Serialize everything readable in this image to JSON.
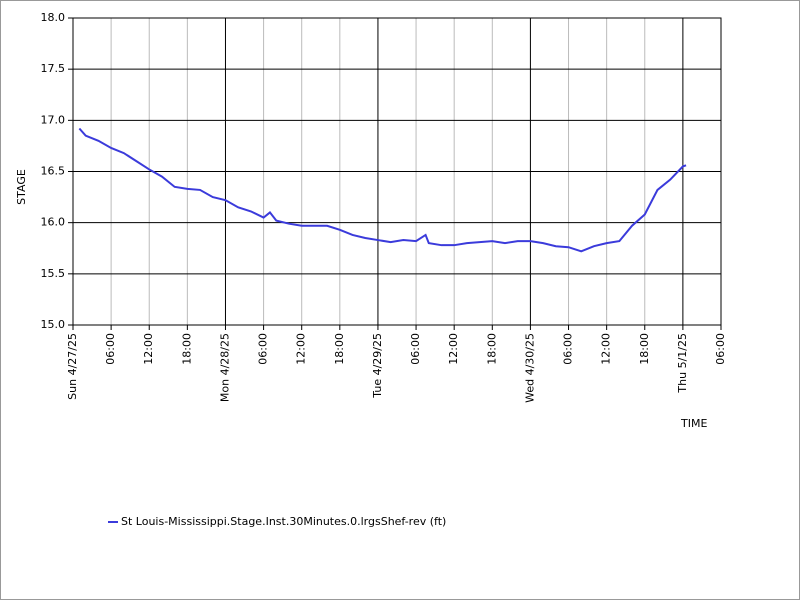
{
  "chart_data": {
    "type": "line",
    "y_label": "STAGE",
    "x_label": "TIME",
    "xlim": [
      "2025-04-27T00:00",
      "2025-05-01T06:00"
    ],
    "xticks": [
      {
        "value": "2025-04-27T00:00",
        "label": "Sun 4/27/25"
      },
      {
        "value": "2025-04-27T06:00",
        "label": "06:00"
      },
      {
        "value": "2025-04-27T12:00",
        "label": "12:00"
      },
      {
        "value": "2025-04-27T18:00",
        "label": "18:00"
      },
      {
        "value": "2025-04-28T00:00",
        "label": "Mon 4/28/25"
      },
      {
        "value": "2025-04-28T06:00",
        "label": "06:00"
      },
      {
        "value": "2025-04-28T12:00",
        "label": "12:00"
      },
      {
        "value": "2025-04-28T18:00",
        "label": "18:00"
      },
      {
        "value": "2025-04-29T00:00",
        "label": "Tue 4/29/25"
      },
      {
        "value": "2025-04-29T06:00",
        "label": "06:00"
      },
      {
        "value": "2025-04-29T12:00",
        "label": "12:00"
      },
      {
        "value": "2025-04-29T18:00",
        "label": "18:00"
      },
      {
        "value": "2025-04-30T00:00",
        "label": "Wed 4/30/25"
      },
      {
        "value": "2025-04-30T06:00",
        "label": "06:00"
      },
      {
        "value": "2025-04-30T12:00",
        "label": "12:00"
      },
      {
        "value": "2025-04-30T18:00",
        "label": "18:00"
      },
      {
        "value": "2025-05-01T00:00",
        "label": "Thu 5/1/25"
      },
      {
        "value": "2025-05-01T06:00",
        "label": "06:00"
      }
    ],
    "ylim": [
      15.0,
      18.0
    ],
    "yticks": [
      {
        "value": 15.0,
        "label": "15.0"
      },
      {
        "value": 15.5,
        "label": "15.5"
      },
      {
        "value": 16.0,
        "label": "16.0"
      },
      {
        "value": 16.5,
        "label": "16.5"
      },
      {
        "value": 17.0,
        "label": "17.0"
      },
      {
        "value": 17.5,
        "label": "17.5"
      },
      {
        "value": 18.0,
        "label": "18.0"
      }
    ],
    "grid": true,
    "x": [
      "2025-04-27T01:00",
      "2025-04-27T02:00",
      "2025-04-27T04:00",
      "2025-04-27T06:00",
      "2025-04-27T08:00",
      "2025-04-27T10:00",
      "2025-04-27T12:00",
      "2025-04-27T14:00",
      "2025-04-27T16:00",
      "2025-04-27T18:00",
      "2025-04-27T20:00",
      "2025-04-27T22:00",
      "2025-04-28T00:00",
      "2025-04-28T02:00",
      "2025-04-28T04:00",
      "2025-04-28T06:00",
      "2025-04-28T07:00",
      "2025-04-28T08:00",
      "2025-04-28T10:00",
      "2025-04-28T12:00",
      "2025-04-28T14:00",
      "2025-04-28T16:00",
      "2025-04-28T18:00",
      "2025-04-28T20:00",
      "2025-04-28T22:00",
      "2025-04-29T00:00",
      "2025-04-29T02:00",
      "2025-04-29T04:00",
      "2025-04-29T06:00",
      "2025-04-29T07:30",
      "2025-04-29T08:00",
      "2025-04-29T10:00",
      "2025-04-29T12:00",
      "2025-04-29T14:00",
      "2025-04-29T16:00",
      "2025-04-29T18:00",
      "2025-04-29T20:00",
      "2025-04-29T22:00",
      "2025-04-30T00:00",
      "2025-04-30T02:00",
      "2025-04-30T04:00",
      "2025-04-30T06:00",
      "2025-04-30T08:00",
      "2025-04-30T10:00",
      "2025-04-30T12:00",
      "2025-04-30T14:00",
      "2025-04-30T16:00",
      "2025-04-30T18:00",
      "2025-04-30T20:00",
      "2025-04-30T22:00",
      "2025-05-01T00:00",
      "2025-05-01T00:30"
    ],
    "series": [
      {
        "name": "St Louis-Mississippi.Stage.Inst.30Minutes.0.lrgsShef-rev (ft)",
        "color": "#3b3bdb",
        "values": [
          16.92,
          16.85,
          16.8,
          16.73,
          16.68,
          16.6,
          16.52,
          16.45,
          16.35,
          16.33,
          16.32,
          16.25,
          16.22,
          16.15,
          16.11,
          16.05,
          16.1,
          16.02,
          15.99,
          15.97,
          15.97,
          15.97,
          15.93,
          15.88,
          15.85,
          15.83,
          15.81,
          15.83,
          15.82,
          15.88,
          15.8,
          15.78,
          15.78,
          15.8,
          15.81,
          15.82,
          15.8,
          15.82,
          15.82,
          15.8,
          15.77,
          15.76,
          15.72,
          15.77,
          15.8,
          15.82,
          15.97,
          16.08,
          16.32,
          16.42,
          16.55,
          16.56
        ]
      }
    ]
  }
}
